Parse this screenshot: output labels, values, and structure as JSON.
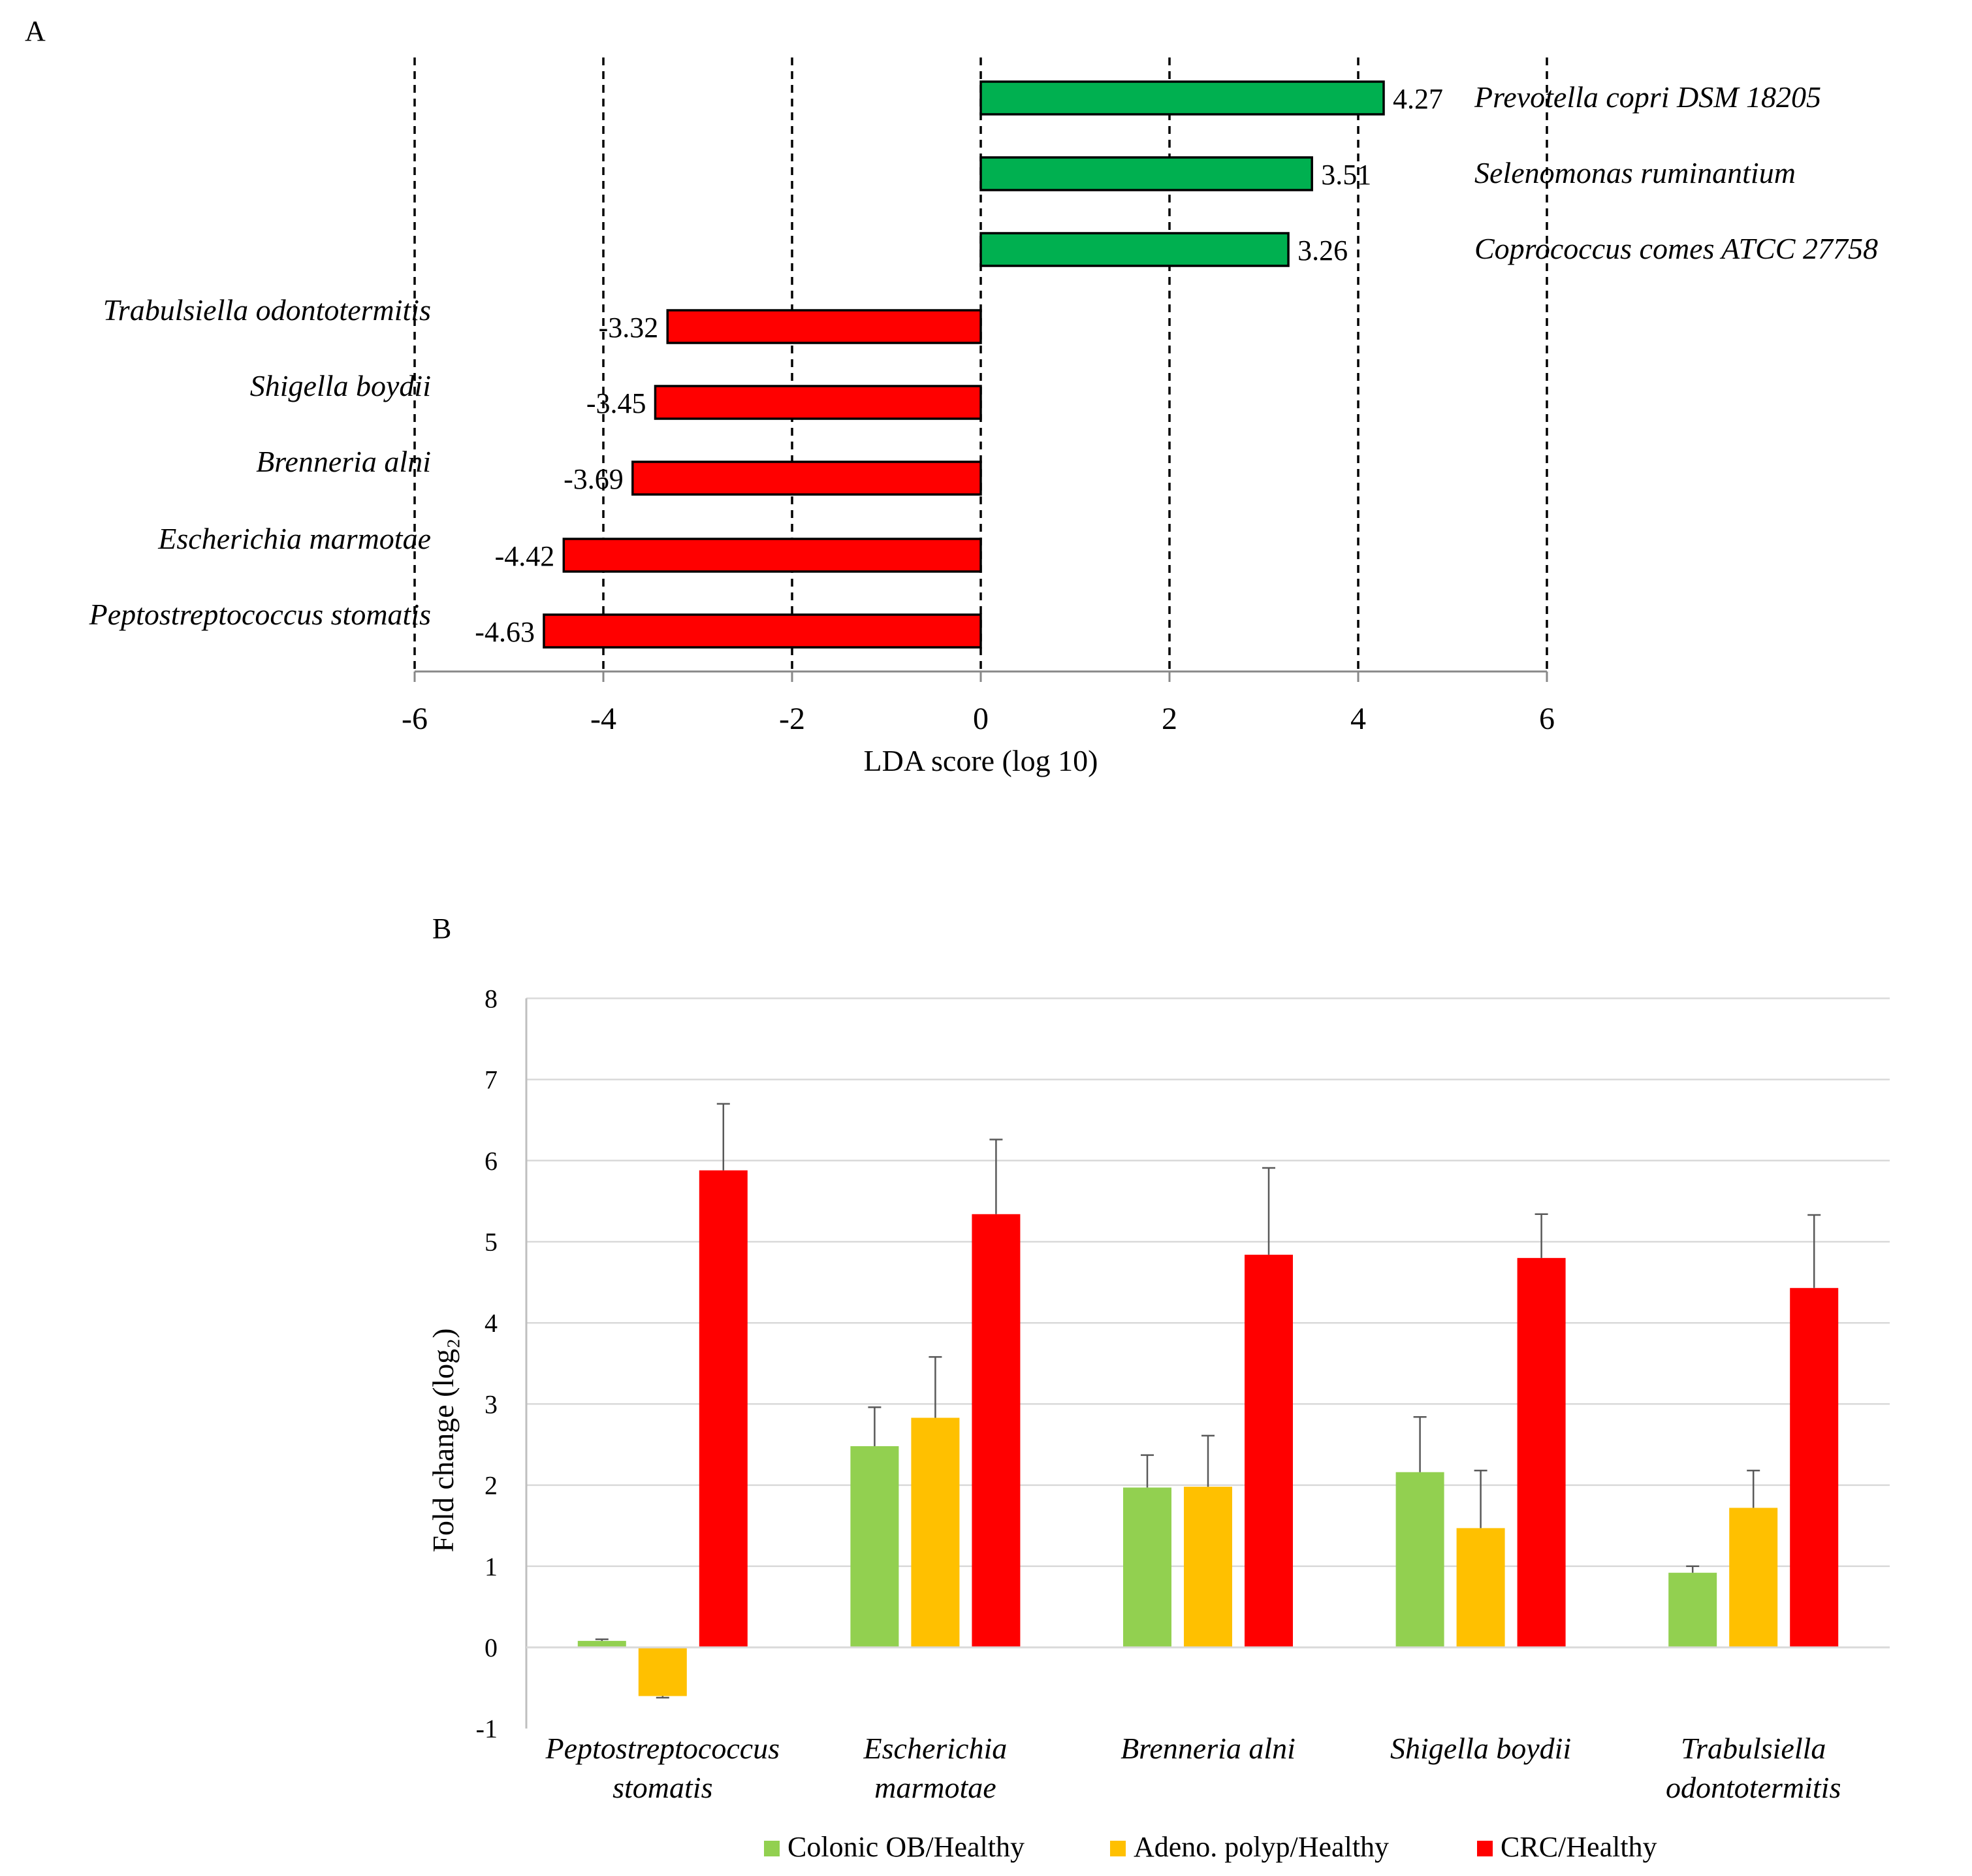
{
  "panels": {
    "a_label": "A",
    "b_label": "B"
  },
  "chart_data": [
    {
      "type": "bar",
      "orientation": "horizontal",
      "panel": "A",
      "xlabel": "LDA score (log 10)",
      "xlim": [
        -6,
        6
      ],
      "xticks": [
        "-6",
        "-4",
        "-2",
        "0",
        "2",
        "4",
        "6"
      ],
      "grid": "dashed vertical at each tick",
      "categories": [
        "Prevotella copri DSM 18205",
        "Selenomonas ruminantium",
        "Coprococcus comes ATCC 27758",
        "Trabulsiella odontotermitis",
        "Shigella boydii",
        "Brenneria alni",
        "Escherichia marmotae",
        "Peptostreptococcus stomatis"
      ],
      "values": [
        4.27,
        3.51,
        3.26,
        -3.32,
        -3.45,
        -3.69,
        -4.42,
        -4.63
      ],
      "value_labels": [
        "4.27",
        "3.51",
        "3.26",
        "-3.32",
        "-3.45",
        "-3.69",
        "-4.42",
        "-4.63"
      ],
      "colors": {
        "positive": "#00b050",
        "negative": "#ff0000"
      }
    },
    {
      "type": "bar",
      "orientation": "vertical",
      "panel": "B",
      "ylabel": "Fold change (log₂)",
      "ylim": [
        -1,
        8
      ],
      "yticks": [
        "-1",
        "0",
        "1",
        "2",
        "3",
        "4",
        "5",
        "6",
        "7",
        "8"
      ],
      "grid": "horizontal",
      "legend_position": "bottom",
      "categories": [
        [
          "Peptostreptococcus",
          "stomatis"
        ],
        [
          "Escherichia",
          "marmotae"
        ],
        [
          "Brenneria alni"
        ],
        [
          "Shigella boydii"
        ],
        [
          "Trabulsiella",
          "odontotermitis"
        ]
      ],
      "series": [
        {
          "name": "Colonic OB/Healthy",
          "color": "#92d050",
          "values": [
            0.08,
            2.48,
            1.97,
            2.16,
            0.92
          ],
          "errors": [
            0.02,
            0.48,
            0.4,
            0.68,
            0.08
          ]
        },
        {
          "name": "Adeno. polyp/Healthy",
          "color": "#ffc000",
          "values": [
            -0.6,
            2.83,
            1.98,
            1.47,
            1.72
          ],
          "errors": [
            0.02,
            0.75,
            0.63,
            0.71,
            0.46
          ]
        },
        {
          "name": "CRC/Healthy",
          "color": "#ff0000",
          "values": [
            5.88,
            5.34,
            4.84,
            4.8,
            4.43
          ],
          "errors": [
            0.82,
            0.92,
            1.07,
            0.54,
            0.9
          ]
        }
      ]
    }
  ]
}
